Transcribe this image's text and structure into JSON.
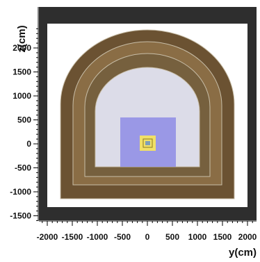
{
  "axes": {
    "x_title": "y(cm)",
    "y_title": "z(cm)",
    "x_ticks": [
      "-2000",
      "-1500",
      "-1000",
      "-500",
      "0",
      "500",
      "1000",
      "1500",
      "2000"
    ],
    "y_ticks": [
      "2000",
      "1500",
      "1000",
      "500",
      "0",
      "-500",
      "-1000",
      "-1500"
    ]
  },
  "colors": {
    "frame": "#2e2e2e",
    "world": "#ffffff",
    "shell_outer": "#6b5232",
    "shell_middle": "#8a6d45",
    "shell_inner": "#76603e",
    "shell_outline": "#c8bea8",
    "hall_air": "#dcdce8",
    "detector_block": "#9a98e6",
    "target_box": "#f1e067",
    "core_box": "#7f9fb8"
  }
}
